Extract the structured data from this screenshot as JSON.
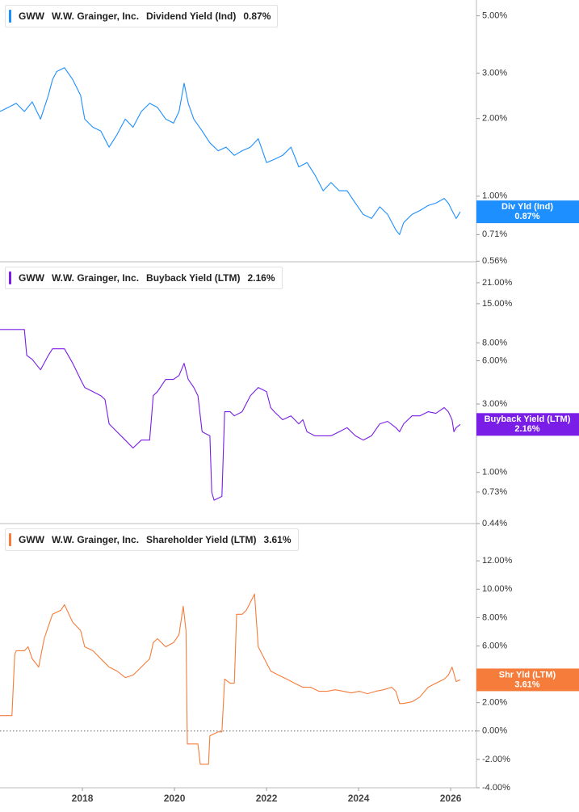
{
  "chart_data": [
    {
      "type": "line",
      "ticker": "GWW",
      "company": "W.W. Grainger, Inc.",
      "title": "Dividend Yield (Ind)",
      "current": {
        "value": 0.87,
        "label": "0.87%"
      },
      "log": true,
      "ylim": [
        0.557,
        5.76
      ],
      "xlim": [
        2016.21,
        2026.56
      ],
      "yticks": [
        {
          "value": 5,
          "label": "5.00%"
        },
        {
          "value": 3,
          "label": "3.00%"
        },
        {
          "value": 2,
          "label": "2.00%"
        },
        {
          "value": 1,
          "label": "1.00%"
        },
        {
          "value": 0.71,
          "label": "0.71%"
        },
        {
          "value": 0.56,
          "label": "0.56%"
        }
      ],
      "x": [
        2016.21,
        2016.39,
        2016.56,
        2016.74,
        2016.91,
        2017.09,
        2017.26,
        2017.35,
        2017.44,
        2017.61,
        2017.79,
        2017.96,
        2018.05,
        2018.23,
        2018.4,
        2018.58,
        2018.75,
        2018.93,
        2019.1,
        2019.28,
        2019.46,
        2019.63,
        2019.81,
        2019.98,
        2020.1,
        2020.21,
        2020.3,
        2020.42,
        2020.6,
        2020.77,
        2020.95,
        2021.12,
        2021.3,
        2021.47,
        2021.65,
        2021.82,
        2022.0,
        2022.17,
        2022.35,
        2022.53,
        2022.7,
        2022.88,
        2023.05,
        2023.23,
        2023.4,
        2023.58,
        2023.75,
        2023.93,
        2024.1,
        2024.28,
        2024.46,
        2024.63,
        2024.81,
        2024.89,
        2024.98,
        2025.16,
        2025.33,
        2025.51,
        2025.68,
        2025.86,
        2025.95,
        2026.03,
        2026.12,
        2026.21
      ],
      "series": [
        {
          "name": "Div Yld (Ind)",
          "color": "#1e8fff",
          "values": [
            2.13,
            2.21,
            2.29,
            2.13,
            2.32,
            1.99,
            2.46,
            2.83,
            3.04,
            3.15,
            2.83,
            2.46,
            1.99,
            1.85,
            1.79,
            1.55,
            1.73,
            1.99,
            1.85,
            2.13,
            2.29,
            2.21,
            1.99,
            1.92,
            2.13,
            2.74,
            2.29,
            1.99,
            1.79,
            1.61,
            1.5,
            1.55,
            1.44,
            1.5,
            1.55,
            1.67,
            1.35,
            1.39,
            1.44,
            1.55,
            1.3,
            1.35,
            1.21,
            1.05,
            1.13,
            1.05,
            1.05,
            0.94,
            0.85,
            0.82,
            0.91,
            0.85,
            0.74,
            0.71,
            0.79,
            0.85,
            0.88,
            0.92,
            0.94,
            0.98,
            0.94,
            0.88,
            0.82,
            0.87
          ]
        }
      ]
    },
    {
      "type": "line",
      "ticker": "GWW",
      "company": "W.W. Grainger, Inc.",
      "title": "Buyback Yield (LTM)",
      "current": {
        "value": 2.16,
        "label": "2.16%"
      },
      "log": true,
      "ylim": [
        0.44,
        29.4
      ],
      "xlim": [
        2016.21,
        2026.56
      ],
      "yticks": [
        {
          "value": 21,
          "label": "21.00%"
        },
        {
          "value": 15,
          "label": "15.00%"
        },
        {
          "value": 8,
          "label": "8.00%"
        },
        {
          "value": 6,
          "label": "6.00%"
        },
        {
          "value": 3,
          "label": "3.00%"
        },
        {
          "value": 1,
          "label": "1.00%"
        },
        {
          "value": 0.73,
          "label": "0.73%"
        },
        {
          "value": 0.44,
          "label": "0.44%"
        }
      ],
      "x": [
        2016.21,
        2016.74,
        2016.79,
        2016.91,
        2017.09,
        2017.26,
        2017.35,
        2017.61,
        2017.79,
        2017.96,
        2018.05,
        2018.23,
        2018.4,
        2018.49,
        2018.58,
        2018.75,
        2018.93,
        2019.1,
        2019.28,
        2019.46,
        2019.54,
        2019.63,
        2019.81,
        2019.98,
        2020.1,
        2020.21,
        2020.3,
        2020.42,
        2020.51,
        2020.6,
        2020.77,
        2020.81,
        2020.86,
        2021.03,
        2021.09,
        2021.21,
        2021.3,
        2021.47,
        2021.65,
        2021.82,
        2022.0,
        2022.09,
        2022.17,
        2022.35,
        2022.53,
        2022.7,
        2022.79,
        2022.88,
        2023.05,
        2023.23,
        2023.4,
        2023.58,
        2023.75,
        2023.93,
        2024.1,
        2024.28,
        2024.46,
        2024.63,
        2024.81,
        2024.89,
        2024.98,
        2025.16,
        2025.33,
        2025.51,
        2025.68,
        2025.86,
        2025.95,
        2026.03,
        2026.07,
        2026.12,
        2026.21
      ],
      "series": [
        {
          "name": "Buyback Yield (LTM)",
          "color": "#7a1de6",
          "values": [
            9.92,
            9.92,
            6.55,
            6.14,
            5.19,
            6.55,
            7.27,
            7.27,
            5.76,
            4.45,
            3.91,
            3.66,
            3.43,
            3.22,
            2.18,
            1.92,
            1.68,
            1.48,
            1.68,
            1.68,
            3.43,
            3.66,
            4.45,
            4.45,
            4.74,
            5.76,
            4.45,
            3.91,
            3.43,
            1.92,
            1.8,
            0.73,
            0.64,
            0.68,
            2.65,
            2.65,
            2.48,
            2.65,
            3.43,
            3.91,
            3.66,
            2.83,
            2.65,
            2.33,
            2.48,
            2.18,
            2.33,
            1.92,
            1.8,
            1.8,
            1.8,
            1.92,
            2.05,
            1.8,
            1.68,
            1.8,
            2.18,
            2.27,
            2.05,
            1.92,
            2.18,
            2.48,
            2.48,
            2.65,
            2.58,
            2.83,
            2.65,
            2.33,
            1.92,
            2.05,
            2.16
          ]
        }
      ]
    },
    {
      "type": "line",
      "ticker": "GWW",
      "company": "W.W. Grainger, Inc.",
      "title": "Shareholder Yield (LTM)",
      "current": {
        "value": 3.61,
        "label": "3.61%"
      },
      "log": false,
      "zero_line": true,
      "ylim": [
        -4,
        14.63
      ],
      "xlim": [
        2016.21,
        2026.56
      ],
      "yticks": [
        {
          "value": 12,
          "label": "12.00%"
        },
        {
          "value": 10,
          "label": "10.00%"
        },
        {
          "value": 8,
          "label": "8.00%"
        },
        {
          "value": 6,
          "label": "6.00%"
        },
        {
          "value": 2,
          "label": "2.00%"
        },
        {
          "value": 0,
          "label": "0.00%"
        },
        {
          "value": -2,
          "label": "-2.00%"
        },
        {
          "value": -4,
          "label": "-4.00%"
        }
      ],
      "xticks": [
        2018,
        2020,
        2022,
        2024,
        2026
      ],
      "x": [
        2016.21,
        2016.47,
        2016.53,
        2016.56,
        2016.74,
        2016.82,
        2016.91,
        2017.05,
        2017.17,
        2017.35,
        2017.53,
        2017.61,
        2017.79,
        2017.96,
        2018.05,
        2018.23,
        2018.4,
        2018.58,
        2018.75,
        2018.93,
        2019.1,
        2019.28,
        2019.46,
        2019.54,
        2019.63,
        2019.81,
        2019.98,
        2020.1,
        2020.19,
        2020.25,
        2020.28,
        2020.33,
        2020.51,
        2020.56,
        2020.74,
        2020.77,
        2020.95,
        2021.03,
        2021.09,
        2021.21,
        2021.3,
        2021.35,
        2021.47,
        2021.56,
        2021.65,
        2021.74,
        2021.82,
        2021.91,
        2022.09,
        2022.26,
        2022.44,
        2022.61,
        2022.79,
        2022.96,
        2023.14,
        2023.32,
        2023.49,
        2023.67,
        2023.84,
        2024.02,
        2024.19,
        2024.37,
        2024.54,
        2024.72,
        2024.81,
        2024.89,
        2024.98,
        2025.16,
        2025.33,
        2025.51,
        2025.68,
        2025.86,
        2025.95,
        2026.03,
        2026.12,
        2026.21
      ],
      "series": [
        {
          "name": "Shr Yld (LTM)",
          "color": "#f57c3b",
          "values": [
            1.09,
            1.09,
            5.37,
            5.66,
            5.66,
            5.94,
            5.09,
            4.51,
            6.51,
            8.23,
            8.51,
            8.91,
            7.66,
            7.09,
            5.94,
            5.66,
            5.09,
            4.51,
            4.23,
            3.77,
            3.94,
            4.51,
            5.09,
            6.23,
            6.51,
            5.94,
            6.23,
            6.8,
            8.8,
            7.09,
            -0.91,
            -0.91,
            -0.91,
            -2.34,
            -2.34,
            -0.34,
            -0.06,
            -0.06,
            3.66,
            3.37,
            3.37,
            8.23,
            8.23,
            8.51,
            9.08,
            9.66,
            5.94,
            5.37,
            4.23,
            3.94,
            3.66,
            3.37,
            3.09,
            3.09,
            2.8,
            2.8,
            2.91,
            2.8,
            2.69,
            2.8,
            2.63,
            2.8,
            2.91,
            3.09,
            2.8,
            1.94,
            1.94,
            2.06,
            2.4,
            3.09,
            3.37,
            3.66,
            3.94,
            4.51,
            3.49,
            3.61
          ]
        }
      ]
    }
  ]
}
